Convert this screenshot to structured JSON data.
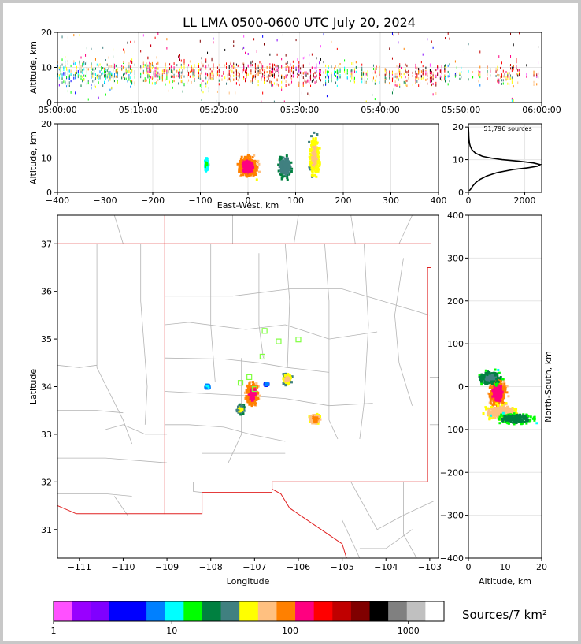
{
  "title": "LL LMA 0500-0600 UTC July 20, 2024",
  "colorbar_label": "Sources/7 km²",
  "sources_label": "51,796 sources",
  "colors": {
    "state_border": "#e02020",
    "county_border": "#b4b4b4",
    "station": "#80ff40",
    "colorbar": [
      "#ff50ff",
      "#9900ff",
      "#8000ff",
      "#0000ff",
      "#0000ff",
      "#0080ff",
      "#00ffff",
      "#00ff00",
      "#008040",
      "#408080",
      "#ffff00",
      "#ffc080",
      "#ff8000",
      "#ff0080",
      "#ff0000",
      "#c00000",
      "#800000",
      "#000000",
      "#808080",
      "#c0c0c0",
      "#ffffff"
    ]
  },
  "chart_data": [
    {
      "panel": "time-height",
      "type": "scatter",
      "ylabel": "Altitude, km",
      "xlim": [
        "05:00:00",
        "06:00:00"
      ],
      "ylim": [
        0,
        20
      ],
      "xticks": [
        "05:00:00",
        "05:10:00",
        "05:20:00",
        "05:30:00",
        "05:40:00",
        "05:50:00",
        "06:00:00"
      ],
      "yticks": [
        0,
        10,
        20
      ],
      "grid": true,
      "density": [
        {
          "t_min": 0,
          "t_max": 33,
          "z_center": 8.5,
          "z_spread": 2.2,
          "intensity": 0.9
        },
        {
          "t_min": 33,
          "t_max": 48,
          "z_center": 8,
          "z_spread": 2,
          "intensity": 0.7
        },
        {
          "t_min": 48,
          "t_max": 60,
          "z_center": 8,
          "z_spread": 2,
          "intensity": 0.5
        }
      ]
    },
    {
      "panel": "east-west-altitude",
      "type": "heatmap",
      "xlabel": "East-West, km",
      "ylabel": "Altitude, km",
      "xlim": [
        -400,
        400
      ],
      "ylim": [
        0,
        20
      ],
      "xticks": [
        -400,
        -300,
        -200,
        -100,
        0,
        100,
        200,
        300,
        400
      ],
      "yticks": [
        0,
        10,
        20
      ],
      "grid": true,
      "cells": [
        {
          "x": -87,
          "z": 8,
          "sx": 3,
          "sz": 1.2,
          "peak": 20
        },
        {
          "x": 0,
          "z": 7.5,
          "sx": 16,
          "sz": 1.8,
          "peak": 300
        },
        {
          "x": 78,
          "z": 7.5,
          "sx": 12,
          "sz": 2,
          "peak": 60
        },
        {
          "x": 140,
          "z": 10.5,
          "sx": 9,
          "sz": 3.6,
          "peak": 120
        }
      ]
    },
    {
      "panel": "altitude-histogram",
      "type": "line",
      "xlim": [
        0,
        2600
      ],
      "ylim": [
        0,
        21
      ],
      "xticks": [
        0,
        2000
      ],
      "yticks": [
        0,
        10,
        20
      ],
      "grid": true,
      "profile_z": [
        0.5,
        1,
        2,
        3,
        4,
        5,
        6,
        7,
        7.5,
        8,
        8.5,
        9,
        9.5,
        10,
        10.5,
        11,
        12,
        13,
        14,
        15,
        16,
        17,
        18,
        19,
        20
      ],
      "profile_count": [
        30,
        80,
        160,
        260,
        420,
        650,
        1000,
        1600,
        2100,
        2450,
        2550,
        2300,
        1800,
        1200,
        800,
        500,
        250,
        130,
        70,
        40,
        25,
        15,
        10,
        6,
        3
      ]
    },
    {
      "panel": "plan-view",
      "type": "heatmap",
      "xlabel": "Longitude",
      "ylabel": "Latitude",
      "xlim": [
        -111.5,
        -102.8
      ],
      "ylim": [
        30.4,
        37.6
      ],
      "xticks": [
        -111,
        -110,
        -109,
        -108,
        -107,
        -106,
        -105,
        -104,
        -103
      ],
      "yticks": [
        31,
        32,
        33,
        34,
        35,
        36,
        37
      ],
      "cells": [
        {
          "lon": -108.07,
          "lat": 34.0,
          "sx": 0.04,
          "sy": 0.04,
          "peak": 15
        },
        {
          "lon": -107.05,
          "lat": 33.85,
          "sx": 0.12,
          "sy": 0.2,
          "peak": 300
        },
        {
          "lon": -107.32,
          "lat": 33.52,
          "sx": 0.07,
          "sy": 0.08,
          "peak": 80
        },
        {
          "lon": -106.25,
          "lat": 34.15,
          "sx": 0.08,
          "sy": 0.1,
          "peak": 120
        },
        {
          "lon": -105.62,
          "lat": 33.32,
          "sx": 0.1,
          "sy": 0.08,
          "peak": 200
        },
        {
          "lon": -106.72,
          "lat": 34.05,
          "sx": 0.04,
          "sy": 0.03,
          "peak": 10
        }
      ],
      "stations": [
        {
          "lon": -106.77,
          "lat": 35.17
        },
        {
          "lon": -106.45,
          "lat": 34.95
        },
        {
          "lon": -106.0,
          "lat": 34.99
        },
        {
          "lon": -106.82,
          "lat": 34.63
        },
        {
          "lon": -107.12,
          "lat": 34.2
        },
        {
          "lon": -107.32,
          "lat": 34.08
        },
        {
          "lon": -107.0,
          "lat": 33.95
        }
      ]
    },
    {
      "panel": "altitude-north-south",
      "type": "heatmap",
      "xlabel": "Altitude, km",
      "ylabel": "North-South, km",
      "xlim": [
        0,
        20
      ],
      "ylim": [
        -400,
        400
      ],
      "xticks": [
        0,
        10,
        20
      ],
      "yticks": [
        -400,
        -300,
        -200,
        -100,
        0,
        100,
        200,
        300,
        400
      ],
      "grid": true,
      "cells": [
        {
          "z": 8,
          "y": -15,
          "sz": 1.6,
          "sy": 22,
          "peak": 300
        },
        {
          "z": 9,
          "y": -60,
          "sz": 3,
          "sy": 12,
          "peak": 150
        },
        {
          "z": 13,
          "y": -75,
          "sz": 3.5,
          "sy": 8,
          "peak": 40
        },
        {
          "z": 6,
          "y": 20,
          "sz": 2,
          "sy": 10,
          "peak": 50
        }
      ]
    },
    {
      "panel": "colorbar",
      "type": "colorbar",
      "scale": "log",
      "range": [
        1,
        2000
      ],
      "ticks": [
        "1",
        "10",
        "100",
        "1000"
      ]
    }
  ]
}
